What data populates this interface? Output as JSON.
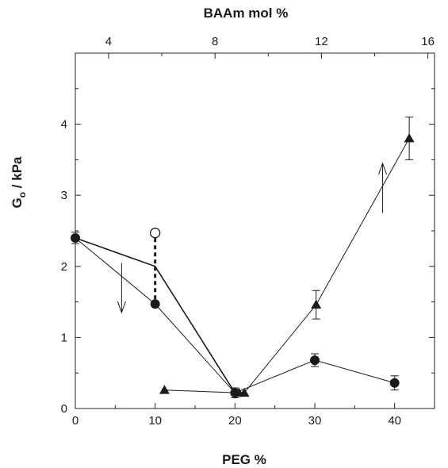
{
  "chart_data": {
    "type": "scatter",
    "xlabel": "PEG %",
    "x2label": "BAAm mol %",
    "ylabel": "G",
    "ylabel_sub": "o",
    "ylabel_unit": " / kPa",
    "xlim": [
      0,
      45
    ],
    "x2lim": [
      2.75,
      16.25
    ],
    "ylim": [
      0,
      5
    ],
    "xticks": [
      0,
      10,
      20,
      30,
      40
    ],
    "x2ticks": [
      4,
      8,
      12,
      16
    ],
    "yticks": [
      0,
      1,
      2,
      3,
      4
    ],
    "xtick_labels": [
      "0",
      "10",
      "20",
      "30",
      "40"
    ],
    "x2tick_labels": [
      "4",
      "8",
      "12",
      "16"
    ],
    "ytick_labels": [
      "0",
      "1",
      "2",
      "3",
      "4"
    ],
    "series": [
      {
        "axis": "bottom",
        "marker": "filled-circle",
        "line": "thin-solid",
        "points": [
          {
            "x": 0,
            "y": 2.4,
            "err": 0.08
          },
          {
            "x": 10,
            "y": 1.47
          },
          {
            "x": 20,
            "y": 0.22,
            "err": 0.07
          },
          {
            "x": 30,
            "y": 0.68,
            "err": 0.09
          },
          {
            "x": 40,
            "y": 0.36,
            "err": 0.1
          }
        ]
      },
      {
        "axis": "bottom",
        "marker": "open-circle",
        "points": [
          {
            "x": 10,
            "y": 2.47
          }
        ]
      },
      {
        "axis": "bottom",
        "marker": "none",
        "line": "solid",
        "points": [
          {
            "x": 0,
            "y": 2.4
          },
          {
            "x": 10,
            "y": 2.0
          },
          {
            "x": 20,
            "y": 0.22
          }
        ]
      },
      {
        "axis": "top",
        "marker": "filled-triangle",
        "line": "thin-solid",
        "points": [
          {
            "x": 6.1,
            "y": 0.26
          },
          {
            "x": 8.9,
            "y": 0.22
          },
          {
            "x": 9.1,
            "y": 0.22
          },
          {
            "x": 11.8,
            "y": 1.46,
            "err": 0.2
          },
          {
            "x": 15.3,
            "y": 3.8,
            "err": 0.3
          }
        ]
      }
    ],
    "connectors": [
      {
        "type": "dashed-vertical",
        "x": 10,
        "y_from": 1.47,
        "y_to": 2.47
      }
    ],
    "annotations": [
      {
        "type": "arrow-down",
        "x": 5.8,
        "y_from": 2.05,
        "y_to": 1.35
      },
      {
        "type": "arrow-up",
        "x": 38.5,
        "y_from": 2.75,
        "y_to": 3.45
      }
    ],
    "grid": false,
    "legend": "none",
    "colors": {
      "ink": "#1a1a1a",
      "background": "#ffffff"
    }
  }
}
